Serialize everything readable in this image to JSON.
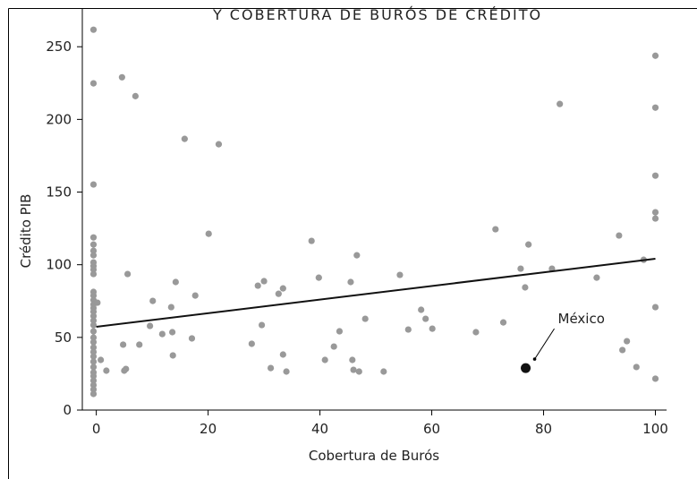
{
  "chart_data": {
    "type": "scatter",
    "title": "Y COBERTURA DE BURÓS DE CRÉDITO",
    "x_label": "Cobertura de Burós",
    "y_label": "Crédito PIB",
    "color": "#999999",
    "x": [
      -0.5,
      -0.5,
      -0.5,
      -0.5,
      -0.5,
      -0.5,
      -0.5,
      -0.5,
      -0.5,
      -0.5,
      -0.5,
      -0.5,
      -0.5,
      -0.5,
      -0.5,
      -0.5,
      -0.5,
      -0.5,
      -0.5,
      -0.5,
      -0.5,
      -0.5,
      -0.5,
      -0.5,
      -0.5,
      -0.5,
      -0.5,
      -0.5,
      -0.5,
      -0.5,
      -0.5,
      -0.5,
      -0.5,
      -0.5,
      0.2,
      0.8,
      1.8,
      4.8,
      4.6,
      7.0,
      5.6,
      5.3,
      5.0,
      7.7,
      9.6,
      10.1,
      11.8,
      13.4,
      14.2,
      13.6,
      13.7,
      15.8,
      17.1,
      17.7,
      21.9,
      20.1,
      27.8,
      28.9,
      30.0,
      29.6,
      31.2,
      32.6,
      33.4,
      33.4,
      34.0,
      38.5,
      39.8,
      40.9,
      42.5,
      43.5,
      45.5,
      45.8,
      46.0,
      46.6,
      47.0,
      48.1,
      51.4,
      54.3,
      55.8,
      58.1,
      58.9,
      60.1,
      67.9,
      71.4,
      72.8,
      75.9,
      76.7,
      77.3,
      81.5,
      82.9,
      89.5,
      93.5,
      94.9,
      94.1,
      96.6,
      97.9,
      100,
      100,
      100,
      100,
      100,
      100,
      100
    ],
    "y": [
      261.7,
      224.8,
      155.2,
      118.8,
      113.9,
      109.6,
      106.5,
      101.6,
      99.1,
      96.7,
      93.6,
      81.3,
      78.8,
      75.7,
      72.7,
      70.2,
      67.7,
      64.7,
      61.6,
      58.5,
      54.2,
      49.9,
      46.8,
      43.1,
      40.0,
      36.9,
      33.3,
      29.6,
      25.9,
      23.4,
      20.3,
      17.2,
      14.2,
      11.1,
      73.9,
      34.5,
      27.1,
      45.0,
      229.0,
      216.0,
      93.6,
      28.3,
      27.1,
      45.0,
      57.9,
      75.1,
      52.3,
      70.8,
      88.1,
      53.6,
      37.6,
      186.6,
      49.3,
      78.8,
      182.9,
      121.3,
      45.6,
      85.6,
      88.7,
      58.5,
      28.9,
      80.0,
      83.7,
      38.2,
      26.5,
      116.4,
      91.1,
      34.5,
      43.7,
      54.2,
      88.1,
      34.5,
      27.7,
      106.5,
      26.5,
      62.8,
      26.5,
      93.0,
      55.4,
      69.0,
      62.8,
      56.0,
      53.6,
      124.4,
      60.3,
      97.3,
      84.4,
      113.9,
      97.3,
      210.6,
      91.1,
      120.1,
      47.4,
      41.3,
      29.6,
      103.4,
      243.8,
      208.1,
      161.3,
      136.1,
      131.8,
      70.8,
      21.6
    ],
    "highlight": {
      "label": "México",
      "x": 76.8,
      "y": 28.9,
      "color": "#111111"
    },
    "trend": {
      "x": [
        0,
        100
      ],
      "y": [
        57.3,
        104.1
      ],
      "color": "#111111"
    },
    "xlim": [
      -2.5,
      102
    ],
    "ylim": [
      0,
      276
    ],
    "xticks": [
      0,
      20,
      40,
      60,
      80,
      100
    ],
    "yticks": [
      0,
      50,
      100,
      150,
      200,
      250
    ]
  }
}
